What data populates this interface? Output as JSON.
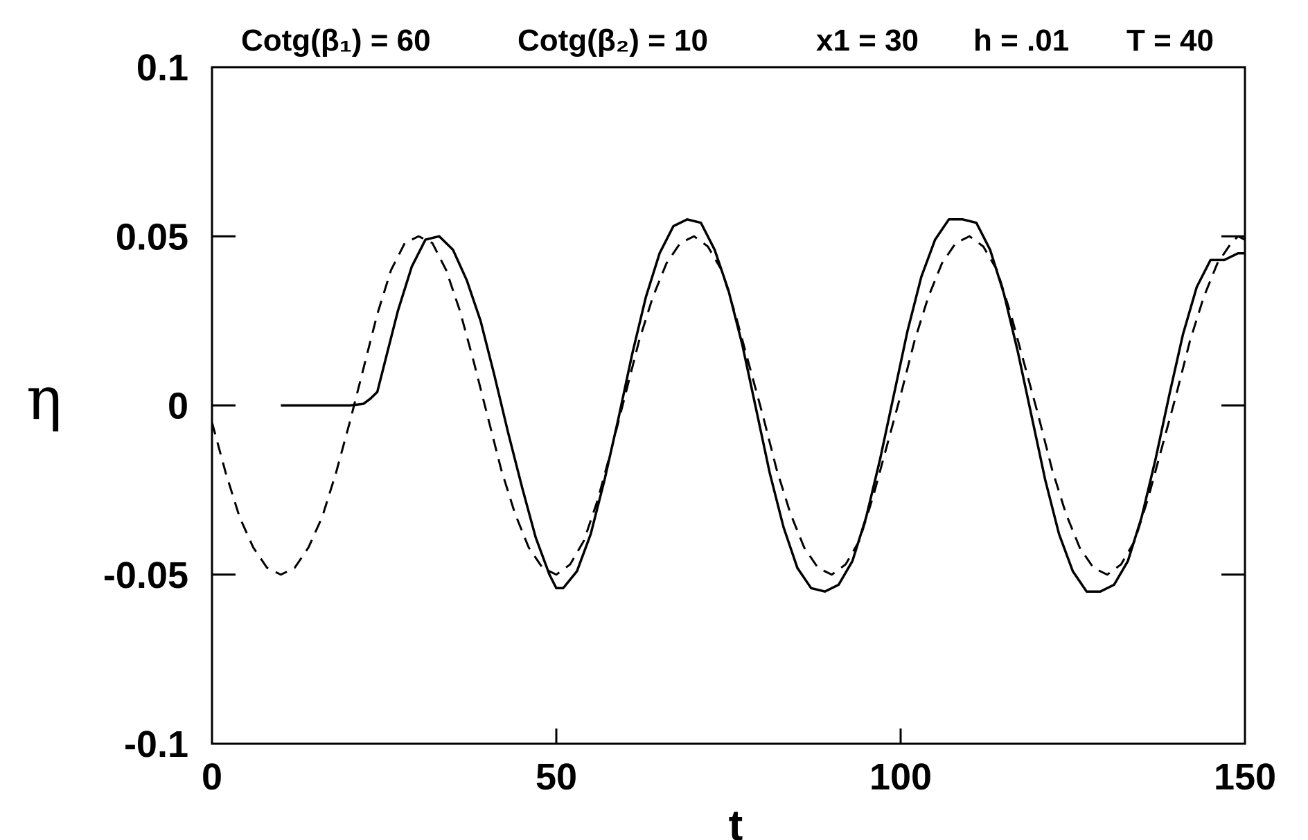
{
  "chart_data": {
    "type": "line",
    "title_parts": {
      "cot1": "Cotg(β₁) = 60",
      "cot2": "Cotg(β₂) = 10",
      "x1": "x1 = 30",
      "h": "h = .01",
      "T": "T = 40"
    },
    "xlabel": "t",
    "ylabel": "η",
    "xlim": [
      0,
      150
    ],
    "ylim": [
      -0.1,
      0.1
    ],
    "xticks": [
      0,
      50,
      100,
      150
    ],
    "xtick_labels": [
      "0",
      "50",
      "100",
      "150"
    ],
    "yticks": [
      0.1,
      0.05,
      0,
      -0.05,
      -0.1
    ],
    "ytick_labels": [
      "0.1",
      "0.05",
      "0",
      "-0.05",
      "-0.1"
    ],
    "grid": false,
    "legend": "none",
    "series": [
      {
        "style": "solid",
        "x": [
          10,
          20,
          22,
          23,
          24,
          25,
          27,
          29,
          31,
          33,
          35,
          37,
          39,
          41,
          43,
          45,
          47,
          49,
          50,
          51,
          53,
          55,
          57,
          59,
          61,
          63,
          65,
          67,
          69,
          71,
          73,
          75,
          77,
          79,
          81,
          83,
          85,
          87,
          89,
          90,
          91,
          93,
          95,
          97,
          99,
          101,
          103,
          105,
          107,
          109,
          111,
          113,
          115,
          117,
          119,
          121,
          123,
          125,
          127,
          129,
          130,
          131,
          133,
          135,
          137,
          139,
          141,
          143,
          145,
          147,
          148,
          149,
          150
        ],
        "y": [
          0,
          0,
          0.0005,
          0.002,
          0.004,
          0.012,
          0.028,
          0.041,
          0.049,
          0.05,
          0.046,
          0.037,
          0.025,
          0.009,
          -0.008,
          -0.024,
          -0.039,
          -0.05,
          -0.054,
          -0.054,
          -0.049,
          -0.038,
          -0.022,
          -0.004,
          0.015,
          0.032,
          0.045,
          0.053,
          0.055,
          0.054,
          0.046,
          0.034,
          0.018,
          -0.001,
          -0.02,
          -0.036,
          -0.048,
          -0.054,
          -0.055,
          -0.054,
          -0.053,
          -0.046,
          -0.033,
          -0.016,
          0.003,
          0.022,
          0.038,
          0.049,
          0.055,
          0.055,
          0.054,
          0.046,
          0.033,
          0.016,
          -0.003,
          -0.022,
          -0.038,
          -0.049,
          -0.055,
          -0.055,
          -0.054,
          -0.053,
          -0.046,
          -0.033,
          -0.016,
          0.003,
          0.021,
          0.035,
          0.043,
          0.043,
          0.044,
          0.045,
          0.045
        ]
      },
      {
        "style": "dashed",
        "x": [
          0,
          2,
          4,
          6,
          8,
          10,
          12,
          14,
          16,
          18,
          20,
          22,
          24,
          26,
          28,
          30,
          32,
          34,
          36,
          38,
          40,
          42,
          44,
          46,
          48,
          50,
          52,
          54,
          56,
          58,
          60,
          62,
          64,
          66,
          68,
          70,
          72,
          74,
          76,
          78,
          80,
          82,
          84,
          86,
          88,
          90,
          92,
          94,
          96,
          98,
          100,
          102,
          104,
          106,
          108,
          110,
          112,
          114,
          116,
          118,
          120,
          122,
          124,
          126,
          128,
          130,
          132,
          134,
          136,
          138,
          140,
          142,
          144,
          146,
          148,
          149,
          150
        ],
        "y": [
          -0.005,
          -0.02,
          -0.033,
          -0.042,
          -0.048,
          -0.05,
          -0.048,
          -0.042,
          -0.033,
          -0.02,
          -0.005,
          0.011,
          0.027,
          0.04,
          0.048,
          0.05,
          0.048,
          0.04,
          0.028,
          0.013,
          -0.003,
          -0.019,
          -0.032,
          -0.042,
          -0.048,
          -0.05,
          -0.047,
          -0.04,
          -0.028,
          -0.013,
          0.003,
          0.019,
          0.032,
          0.042,
          0.048,
          0.05,
          0.047,
          0.04,
          0.027,
          0.012,
          -0.003,
          -0.019,
          -0.032,
          -0.042,
          -0.048,
          -0.05,
          -0.047,
          -0.04,
          -0.027,
          -0.012,
          0.003,
          0.019,
          0.032,
          0.042,
          0.048,
          0.05,
          0.047,
          0.04,
          0.027,
          0.012,
          -0.003,
          -0.019,
          -0.032,
          -0.042,
          -0.048,
          -0.05,
          -0.047,
          -0.04,
          -0.027,
          -0.012,
          0.003,
          0.019,
          0.032,
          0.042,
          0.048,
          0.05,
          0.049
        ]
      }
    ]
  }
}
